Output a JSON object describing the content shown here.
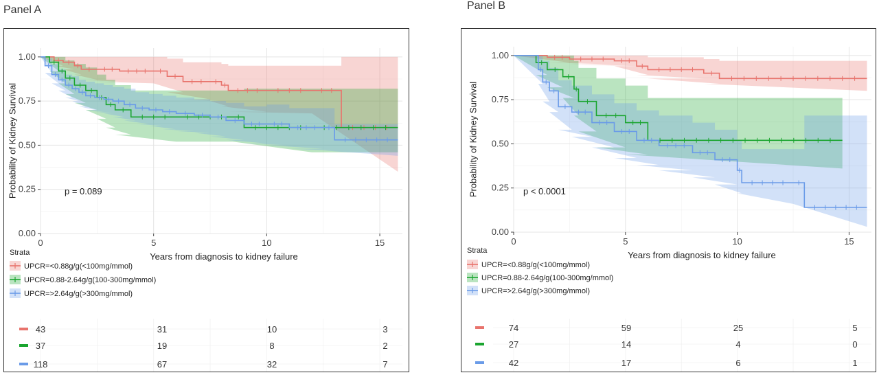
{
  "panels": [
    {
      "title": "Panel A",
      "pvalue": "p = 0.089",
      "ylabel": "Probability of Kidney Survival",
      "xlabel": "Years from diagnosis to kidney failure",
      "legend_title": "Strata",
      "legend": [
        "UPCR=<0.88g/g(<100mg/mmol)",
        "UPCR=0.88-2.64g/g(100-300mg/mmol)",
        "UPCR=>2.64g/g(>300mg/mmol)"
      ],
      "risk_table": [
        [
          "43",
          "31",
          "10",
          "3"
        ],
        [
          "37",
          "19",
          "8",
          "2"
        ],
        [
          "118",
          "67",
          "32",
          "7"
        ]
      ]
    },
    {
      "title": "Panel B",
      "pvalue": "p < 0.0001",
      "ylabel": "Probability of Kidney Survival",
      "xlabel": "Years from diagnosis to kidney failure",
      "legend_title": "Strata",
      "legend": [
        "UPCR=<0.88g/g(<100mg/mmol)",
        "UPCR=0.88-2.64g/g(100-300mg/mmol)",
        "UPCR=>2.64g/g(>300mg/mmol)"
      ],
      "risk_table": [
        [
          "74",
          "59",
          "25",
          "5"
        ],
        [
          "27",
          "14",
          "4",
          "0"
        ],
        [
          "42",
          "17",
          "6",
          "1"
        ]
      ]
    }
  ],
  "colors": {
    "red": "#e8736c",
    "green": "#1aa52f",
    "blue": "#6a9be8"
  },
  "chart_data": [
    {
      "type": "line",
      "title": "Panel A",
      "xlabel": "Years from diagnosis to kidney failure",
      "ylabel": "Probability of Kidney Survival",
      "xlim": [
        0,
        16
      ],
      "ylim": [
        0,
        1.05
      ],
      "xticks": [
        0,
        5,
        10,
        15
      ],
      "yticks": [
        "0.00",
        "0.25",
        "0.50",
        "0.75",
        "1.00"
      ],
      "annotation": "p = 0.089",
      "grid": true,
      "legend_position": "bottom-left",
      "series": [
        {
          "name": "UPCR=<0.88g/g(<100mg/mmol)",
          "color": "#e8736c",
          "x": [
            0,
            0.6,
            1.0,
            1.5,
            1.8,
            2.5,
            3.5,
            5.0,
            5.6,
            6.3,
            7.5,
            8.0,
            8.3,
            10.0,
            12.0,
            13.3,
            15.8
          ],
          "y": [
            1.0,
            0.98,
            0.97,
            0.95,
            0.93,
            0.93,
            0.92,
            0.92,
            0.89,
            0.86,
            0.86,
            0.84,
            0.81,
            0.81,
            0.81,
            0.6,
            0.6
          ],
          "lower": [
            1.0,
            0.95,
            0.93,
            0.9,
            0.87,
            0.86,
            0.85,
            0.85,
            0.8,
            0.76,
            0.75,
            0.72,
            0.69,
            0.68,
            0.68,
            0.35,
            0.35
          ],
          "upper": [
            1.0,
            1.0,
            1.0,
            1.0,
            1.0,
            1.0,
            1.0,
            1.0,
            0.99,
            0.97,
            0.97,
            0.96,
            0.95,
            0.95,
            0.95,
            1.0,
            1.0
          ]
        },
        {
          "name": "UPCR=0.88-2.64g/g(100-300mg/mmol)",
          "color": "#1aa52f",
          "x": [
            0,
            0.4,
            0.8,
            1.1,
            1.5,
            2.0,
            2.5,
            2.9,
            3.3,
            4.0,
            6.0,
            8.5,
            9.0,
            12.0,
            15.8
          ],
          "y": [
            1.0,
            0.97,
            0.92,
            0.88,
            0.84,
            0.81,
            0.77,
            0.73,
            0.7,
            0.66,
            0.66,
            0.66,
            0.6,
            0.6,
            0.6
          ],
          "lower": [
            1.0,
            0.92,
            0.85,
            0.79,
            0.74,
            0.7,
            0.65,
            0.6,
            0.56,
            0.52,
            0.52,
            0.52,
            0.46,
            0.46,
            0.46
          ],
          "upper": [
            1.0,
            1.0,
            1.0,
            0.98,
            0.96,
            0.94,
            0.9,
            0.87,
            0.84,
            0.81,
            0.81,
            0.81,
            0.82,
            0.82,
            0.82
          ]
        },
        {
          "name": "UPCR=>2.64g/g(>300mg/mmol)",
          "color": "#6a9be8",
          "x": [
            0,
            0.2,
            0.5,
            0.8,
            1.1,
            1.4,
            1.7,
            2.0,
            2.4,
            2.8,
            3.2,
            3.7,
            4.2,
            4.8,
            5.4,
            6.0,
            6.8,
            7.5,
            8.2,
            9.0,
            10.0,
            11.0,
            12.5,
            13.0,
            15.8
          ],
          "y": [
            1.0,
            0.95,
            0.9,
            0.87,
            0.84,
            0.82,
            0.8,
            0.78,
            0.77,
            0.76,
            0.75,
            0.73,
            0.71,
            0.7,
            0.69,
            0.68,
            0.67,
            0.66,
            0.64,
            0.62,
            0.62,
            0.6,
            0.6,
            0.53,
            0.53
          ],
          "lower": [
            1.0,
            0.91,
            0.85,
            0.81,
            0.77,
            0.75,
            0.72,
            0.7,
            0.69,
            0.68,
            0.66,
            0.64,
            0.62,
            0.61,
            0.59,
            0.58,
            0.57,
            0.55,
            0.53,
            0.51,
            0.5,
            0.48,
            0.47,
            0.44,
            0.44
          ],
          "upper": [
            1.0,
            0.99,
            0.96,
            0.93,
            0.9,
            0.89,
            0.87,
            0.86,
            0.85,
            0.84,
            0.83,
            0.82,
            0.8,
            0.79,
            0.78,
            0.77,
            0.76,
            0.75,
            0.74,
            0.72,
            0.73,
            0.71,
            0.71,
            0.62,
            0.62
          ]
        }
      ],
      "risk_table": {
        "times": [
          0,
          5,
          10,
          15
        ],
        "counts": [
          [
            43,
            31,
            10,
            3
          ],
          [
            37,
            19,
            8,
            2
          ],
          [
            118,
            67,
            32,
            7
          ]
        ]
      }
    },
    {
      "type": "line",
      "title": "Panel B",
      "xlabel": "Years from diagnosis to kidney failure",
      "ylabel": "Probability of Kidney Survival",
      "xlim": [
        0,
        16
      ],
      "ylim": [
        0,
        1.05
      ],
      "xticks": [
        0,
        5,
        10,
        15
      ],
      "yticks": [
        "0.00",
        "0.25",
        "0.50",
        "0.75",
        "1.00"
      ],
      "annotation": "p < 0.0001",
      "grid": true,
      "legend_position": "bottom-left",
      "series": [
        {
          "name": "UPCR=<0.88g/g(<100mg/mmol)",
          "color": "#e8736c",
          "x": [
            0,
            1.5,
            2.5,
            4.5,
            5.5,
            6.0,
            8.5,
            9.2,
            15.8
          ],
          "y": [
            1.0,
            0.99,
            0.98,
            0.97,
            0.94,
            0.92,
            0.9,
            0.87,
            0.87
          ],
          "lower": [
            1.0,
            0.96,
            0.95,
            0.94,
            0.89,
            0.87,
            0.84,
            0.8,
            0.8
          ],
          "upper": [
            1.0,
            1.0,
            1.0,
            1.0,
            1.0,
            0.99,
            0.98,
            0.97,
            0.97
          ]
        },
        {
          "name": "UPCR=0.88-2.64g/g(100-300mg/mmol)",
          "color": "#1aa52f",
          "x": [
            0,
            1.0,
            1.5,
            2.2,
            2.7,
            2.9,
            3.7,
            5.0,
            6.0,
            14.7
          ],
          "y": [
            1.0,
            0.96,
            0.92,
            0.88,
            0.81,
            0.74,
            0.66,
            0.62,
            0.52,
            0.52
          ],
          "lower": [
            1.0,
            0.89,
            0.82,
            0.76,
            0.66,
            0.57,
            0.48,
            0.44,
            0.36,
            0.36
          ],
          "upper": [
            1.0,
            1.0,
            1.0,
            1.0,
            0.97,
            0.93,
            0.87,
            0.83,
            0.76,
            0.76
          ]
        },
        {
          "name": "UPCR=>2.64g/g(>300mg/mmol)",
          "color": "#6a9be8",
          "x": [
            0,
            1.1,
            1.3,
            1.6,
            2.0,
            2.6,
            3.5,
            4.5,
            5.5,
            6.5,
            8.0,
            9.0,
            10.0,
            10.2,
            12.5,
            13.0,
            15.8
          ],
          "y": [
            1.0,
            0.92,
            0.85,
            0.8,
            0.71,
            0.68,
            0.62,
            0.57,
            0.52,
            0.49,
            0.45,
            0.41,
            0.35,
            0.28,
            0.28,
            0.14,
            0.14
          ],
          "lower": [
            1.0,
            0.84,
            0.74,
            0.68,
            0.58,
            0.54,
            0.48,
            0.42,
            0.38,
            0.35,
            0.31,
            0.27,
            0.22,
            0.16,
            0.16,
            0.03,
            0.03
          ],
          "upper": [
            1.0,
            1.0,
            0.97,
            0.93,
            0.86,
            0.83,
            0.78,
            0.73,
            0.69,
            0.66,
            0.62,
            0.58,
            0.52,
            0.47,
            0.47,
            0.66,
            0.66
          ]
        }
      ],
      "risk_table": {
        "times": [
          0,
          5,
          10,
          15
        ],
        "counts": [
          [
            74,
            59,
            25,
            5
          ],
          [
            27,
            14,
            4,
            0
          ],
          [
            42,
            17,
            6,
            1
          ]
        ]
      }
    }
  ]
}
